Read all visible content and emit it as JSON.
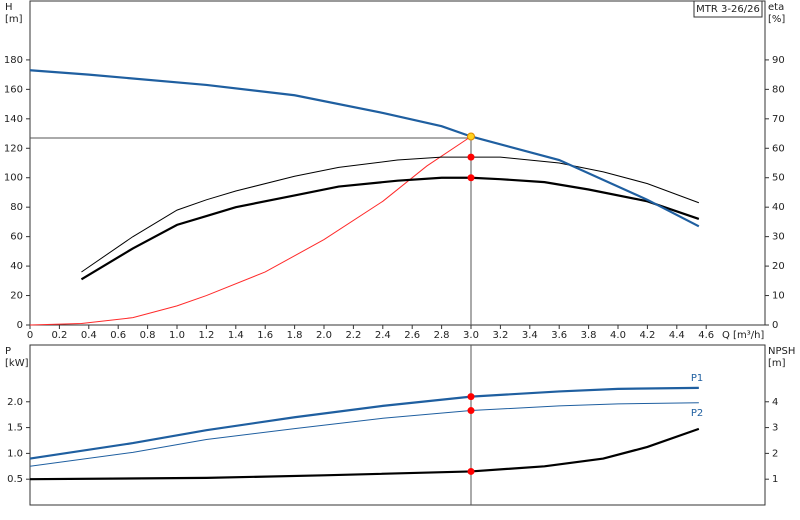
{
  "chart_data": [
    {
      "type": "line",
      "title": "MTR 3-26/26",
      "ylabel": [
        "H",
        "[m]"
      ],
      "y2label": [
        "eta",
        "[%]"
      ],
      "xlabel": "Q [m³/h]",
      "xlim": [
        0,
        5
      ],
      "ylim": [
        0,
        220
      ],
      "y2lim": [
        0,
        110
      ],
      "xticks": [
        0,
        0.2,
        0.4,
        0.6,
        0.8,
        {
          "value": 1,
          "label": "1.0"
        },
        1.2,
        1.4,
        1.6,
        1.8,
        {
          "value": 2,
          "label": "2.0"
        },
        2.2,
        2.4,
        2.6,
        2.8,
        {
          "value": 3,
          "label": "3.0"
        },
        3.2,
        3.4,
        3.6,
        3.8,
        {
          "value": 4,
          "label": "4.0"
        },
        4.2,
        4.4,
        4.6
      ],
      "yticks": [
        0,
        20,
        40,
        60,
        80,
        100,
        120,
        140,
        160,
        180
      ],
      "y2ticks": [
        0,
        10,
        20,
        30,
        40,
        50,
        60,
        70,
        80,
        90
      ],
      "crosshair": {
        "x": 3,
        "y": 127
      },
      "series": [
        {
          "color": "#ff2a2a",
          "style": "thin",
          "axis": "y",
          "x": [
            0,
            0.35,
            0.7,
            1.0,
            1.2,
            1.6,
            2.0,
            2.4,
            2.7,
            3.0
          ],
          "values": [
            0,
            1,
            5,
            13,
            20,
            36,
            58,
            84,
            108,
            128
          ]
        },
        {
          "color": "#000000",
          "style": "thin",
          "axis": "y2",
          "x": [
            0.35,
            0.7,
            1.0,
            1.2,
            1.4,
            1.8,
            2.1,
            2.5,
            2.8,
            3.0,
            3.2,
            3.6,
            3.9,
            4.2,
            4.55
          ],
          "values": [
            18,
            30,
            39,
            42.5,
            45.5,
            50.5,
            53.5,
            56,
            57,
            57,
            57,
            55,
            52,
            48,
            41.5
          ]
        },
        {
          "color": "#000000",
          "style": "thick",
          "axis": "y2",
          "x": [
            0.35,
            0.7,
            1.0,
            1.2,
            1.4,
            1.8,
            2.1,
            2.5,
            2.8,
            3.0,
            3.2,
            3.5,
            3.8,
            4.2,
            4.55
          ],
          "values": [
            15.5,
            26,
            34,
            37,
            40,
            44,
            47,
            49,
            50,
            50,
            49.5,
            48.5,
            46,
            42,
            36
          ]
        },
        {
          "color": "#1f5fa0",
          "style": "thick",
          "axis": "y",
          "x": [
            0,
            0.4,
            1.2,
            1.8,
            2.4,
            2.8,
            3.0,
            3.6,
            4.2,
            4.55
          ],
          "values": [
            173,
            170,
            163,
            156,
            144,
            135,
            128,
            112,
            85,
            67
          ]
        }
      ],
      "points": [
        {
          "x": 3,
          "values": 128,
          "axis": "y",
          "color": "#ffd21f"
        },
        {
          "x": 3,
          "values": 57,
          "axis": "y2",
          "color": "#ff0000"
        },
        {
          "x": 3,
          "values": 50,
          "axis": "y2",
          "color": "#ff0000"
        }
      ]
    },
    {
      "type": "line",
      "ylabel": [
        "P",
        "[kW]"
      ],
      "y2label": [
        "NPSH",
        "[m]"
      ],
      "xlim": [
        0,
        5
      ],
      "ylim": [
        0,
        3.1
      ],
      "y2lim": [
        0,
        6.2
      ],
      "yticks": [
        0.5,
        {
          "value": 1,
          "label": "1.0"
        },
        1.5,
        {
          "value": 2,
          "label": "2.0"
        }
      ],
      "y2ticks": [
        1,
        2,
        3,
        4
      ],
      "crosshair": {
        "x": 3
      },
      "series": [
        {
          "name": "P1",
          "label_side": "above",
          "color": "#1f5fa0",
          "style": "thick",
          "axis": "y",
          "x": [
            0,
            0.7,
            1.2,
            1.8,
            2.4,
            3.0,
            3.6,
            4.0,
            4.55
          ],
          "values": [
            0.9,
            1.2,
            1.45,
            1.7,
            1.92,
            2.1,
            2.2,
            2.25,
            2.27
          ]
        },
        {
          "name": "P2",
          "label_side": "below",
          "color": "#1f5fa0",
          "style": "thin",
          "axis": "y",
          "x": [
            0,
            0.7,
            1.2,
            1.8,
            2.4,
            3.0,
            3.6,
            4.0,
            4.55
          ],
          "values": [
            0.75,
            1.02,
            1.27,
            1.48,
            1.68,
            1.83,
            1.92,
            1.96,
            1.98
          ]
        },
        {
          "color": "#000000",
          "style": "thick",
          "axis": "y2",
          "x": [
            0,
            1.2,
            2.0,
            3.0,
            3.5,
            3.9,
            4.2,
            4.55
          ],
          "values": [
            1.0,
            1.05,
            1.15,
            1.3,
            1.5,
            1.8,
            2.25,
            2.95
          ]
        }
      ],
      "points": [
        {
          "x": 3,
          "values": 2.1,
          "axis": "y",
          "color": "#ff0000"
        },
        {
          "x": 3,
          "values": 1.83,
          "axis": "y",
          "color": "#ff0000"
        },
        {
          "x": 3,
          "values": 1.3,
          "axis": "y2",
          "color": "#ff0000"
        }
      ]
    }
  ]
}
